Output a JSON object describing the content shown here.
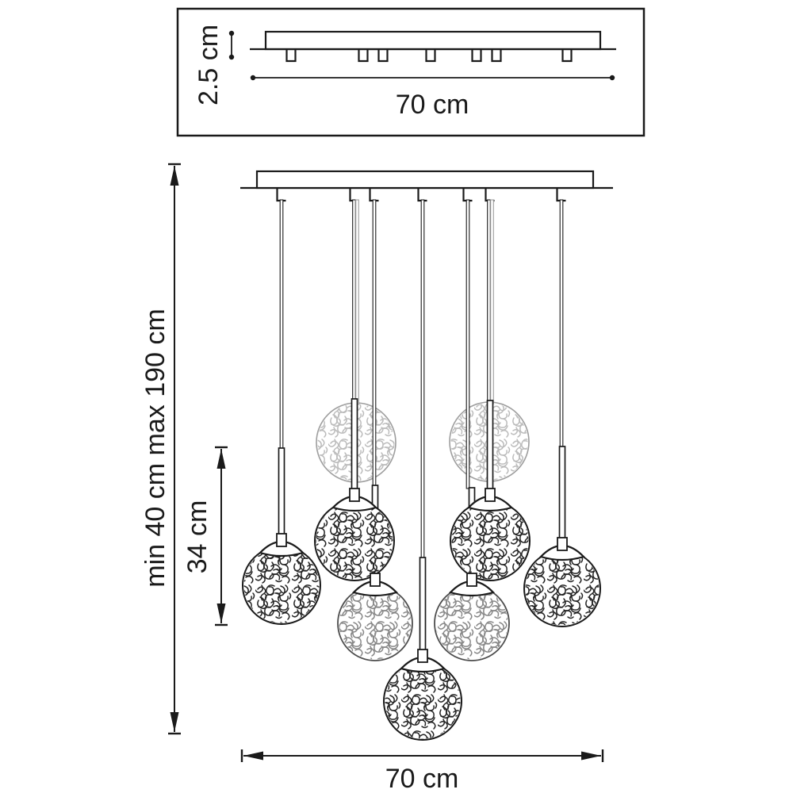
{
  "document": {
    "type": "pendant-chandelier-technical-drawing",
    "background_color": "#ffffff",
    "line_color": "#1a1a1a"
  },
  "detail_view": {
    "description": "ceiling-plate-side-view",
    "height_dimension_label": "2.5 cm",
    "width_dimension_label": "70 cm"
  },
  "main_view": {
    "pendant_count": 9,
    "suspension_range_label": "min 40 cm max 190 cm",
    "pendant_drop_label": "34 cm",
    "fixture_width_label": "70 cm"
  }
}
